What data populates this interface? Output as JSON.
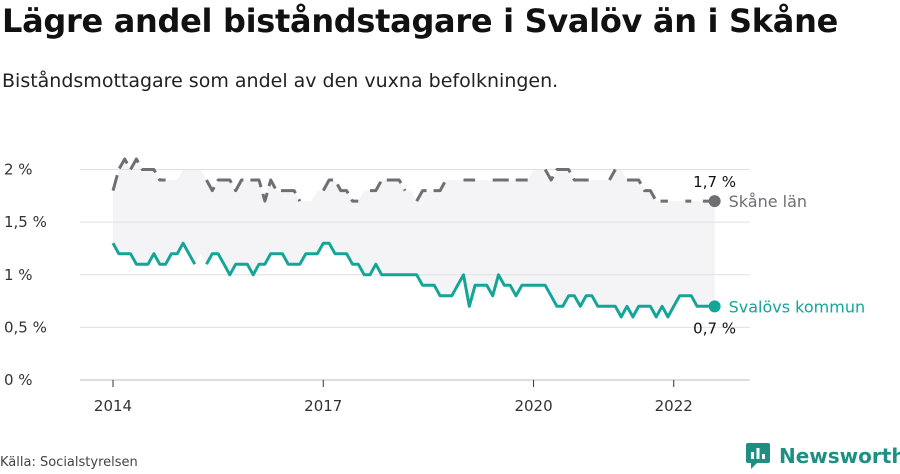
{
  "title": "Lägre andel biståndstagare i Svalöv än i Skåne",
  "subtitle": "Biståndsmottagare som andel av den vuxna befolkningen.",
  "source": "Källa: Socialstyrelsen",
  "brand": {
    "name": "Newsworthy",
    "icon": "newsworthy-logo-icon"
  },
  "colors": {
    "skane": "#6e6e74",
    "svalov": "#14a598",
    "band": "#f4f4f6",
    "grid": "#e0e0e0"
  },
  "chart_data": {
    "type": "line",
    "ylim": [
      0,
      2.1
    ],
    "yticks": [
      0,
      0.5,
      1,
      1.5,
      2
    ],
    "ytick_labels": [
      "0 %",
      "0,5 %",
      "1 %",
      "1,5 %",
      "2 %"
    ],
    "xlim": [
      2014.0,
      2022.66
    ],
    "xticks": [
      2014,
      2017,
      2020,
      2022
    ],
    "xtick_labels": [
      "2014",
      "2017",
      "2020",
      "2022"
    ],
    "grid": true,
    "legend": "inline-right",
    "series": [
      {
        "name": "Skåne län",
        "style": "dashed",
        "end_label": "1,7 %",
        "x_start": 2014.0,
        "x_step": 0.0833333,
        "values": [
          1.8,
          2.0,
          2.1,
          2.0,
          2.1,
          2.0,
          2.0,
          2.0,
          1.9,
          1.9,
          1.9,
          1.9,
          2.0,
          2.0,
          2.0,
          2.0,
          1.9,
          1.8,
          1.9,
          1.9,
          1.9,
          1.8,
          1.9,
          1.9,
          1.9,
          1.9,
          1.7,
          1.9,
          1.8,
          1.8,
          1.8,
          1.8,
          1.7,
          1.7,
          1.7,
          1.8,
          1.8,
          1.9,
          1.9,
          1.8,
          1.8,
          1.7,
          1.7,
          1.8,
          1.8,
          1.8,
          1.9,
          1.9,
          1.9,
          1.9,
          1.8,
          1.8,
          1.7,
          1.8,
          1.8,
          1.8,
          1.8,
          1.9,
          1.9,
          1.9,
          1.9,
          1.9,
          1.9,
          1.9,
          1.9,
          1.9,
          1.9,
          1.9,
          1.9,
          1.9,
          1.9,
          1.9,
          2.0,
          2.0,
          2.0,
          1.9,
          2.0,
          2.0,
          2.0,
          1.9,
          1.9,
          1.9,
          1.9,
          1.9,
          1.9,
          1.9,
          2.0,
          2.0,
          1.9,
          1.9,
          1.9,
          1.8,
          1.8,
          1.7,
          1.7,
          1.7,
          1.7,
          1.7,
          1.7,
          1.7,
          1.7,
          1.7,
          1.7,
          1.7
        ]
      },
      {
        "name": "Svalövs kommun",
        "style": "solid",
        "end_label": "0,7 %",
        "x_start": 2014.0,
        "x_step": 0.0833333,
        "values": [
          1.3,
          1.2,
          1.2,
          1.2,
          1.1,
          1.1,
          1.1,
          1.2,
          1.1,
          1.1,
          1.2,
          1.2,
          1.3,
          1.2,
          1.1,
          1.2,
          1.1,
          1.2,
          1.2,
          1.1,
          1.0,
          1.1,
          1.1,
          1.1,
          1.0,
          1.1,
          1.1,
          1.2,
          1.2,
          1.2,
          1.1,
          1.1,
          1.1,
          1.2,
          1.2,
          1.2,
          1.3,
          1.3,
          1.2,
          1.2,
          1.2,
          1.1,
          1.1,
          1.0,
          1.0,
          1.1,
          1.0,
          1.0,
          1.0,
          1.0,
          1.0,
          1.0,
          1.0,
          0.9,
          0.9,
          0.9,
          0.8,
          0.8,
          0.8,
          0.9,
          1.0,
          0.7,
          0.9,
          0.9,
          0.9,
          0.8,
          1.0,
          0.9,
          0.9,
          0.8,
          0.9,
          0.9,
          0.9,
          0.9,
          0.9,
          0.8,
          0.7,
          0.7,
          0.8,
          0.8,
          0.7,
          0.8,
          0.8,
          0.7,
          0.7,
          0.7,
          0.7,
          0.6,
          0.7,
          0.6,
          0.7,
          0.7,
          0.7,
          0.6,
          0.7,
          0.6,
          0.7,
          0.8,
          0.8,
          0.8,
          0.7,
          0.7,
          0.7,
          0.7
        ],
        "breaks": [
          [
            2015.17,
            2015.33
          ]
        ]
      }
    ],
    "series_gaps": {
      "Skåne län": [
        [
          2014.75,
          2014.95
        ],
        [
          2015.05,
          2015.25
        ],
        [
          2016.72,
          2016.92
        ],
        [
          2017.58,
          2017.66
        ],
        [
          2018.2,
          2018.3
        ],
        [
          2018.75,
          2018.95
        ],
        [
          2019.2,
          2019.4
        ],
        [
          2019.95,
          2020.1
        ],
        [
          2020.88,
          2021.05
        ],
        [
          2021.2,
          2021.3
        ],
        [
          2021.98,
          2022.15
        ],
        [
          2022.3,
          2022.4
        ]
      ]
    }
  }
}
